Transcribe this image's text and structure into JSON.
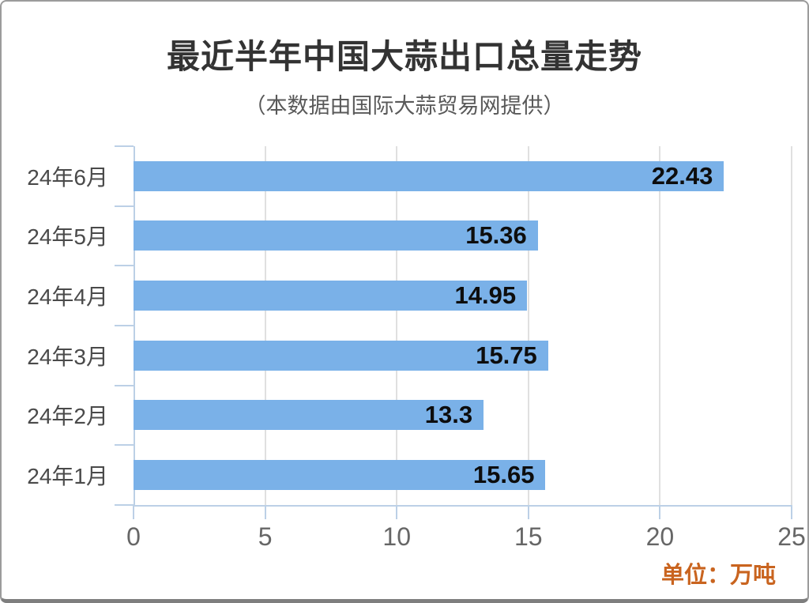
{
  "page": {
    "title": "最近半年中国大蒜出口总量走势",
    "subtitle": "（本数据由国际大蒜贸易网提供）",
    "unit_label": "单位：万吨"
  },
  "chart_data": {
    "type": "bar",
    "orientation": "horizontal",
    "title": "最近半年中国大蒜出口总量走势",
    "subtitle": "（本数据由国际大蒜贸易网提供）",
    "unit_label": "单位：万吨",
    "categories": [
      "24年6月",
      "24年5月",
      "24年4月",
      "24年3月",
      "24年2月",
      "24年1月"
    ],
    "values": [
      22.43,
      15.36,
      14.95,
      15.75,
      13.3,
      15.65
    ],
    "value_labels": [
      "22.43",
      "15.36",
      "14.95",
      "15.75",
      "13.3",
      "15.65"
    ],
    "xlim": [
      0,
      25
    ],
    "xticks": [
      0,
      5,
      10,
      15,
      20,
      25
    ],
    "grid": true,
    "legend": "none",
    "colors": {
      "bar": "#7ab1e8",
      "axis": "#bcd0e6",
      "gridline": "#e0e0e0",
      "title": "#333333",
      "subtitle": "#595959",
      "category_label": "#4a4a4a",
      "tick_label": "#666666",
      "value_label": "#0d0d0d",
      "unit": "#c9641f",
      "frame_border": "#9b9b9b",
      "frame_bottom": "#7e7e7e"
    }
  }
}
